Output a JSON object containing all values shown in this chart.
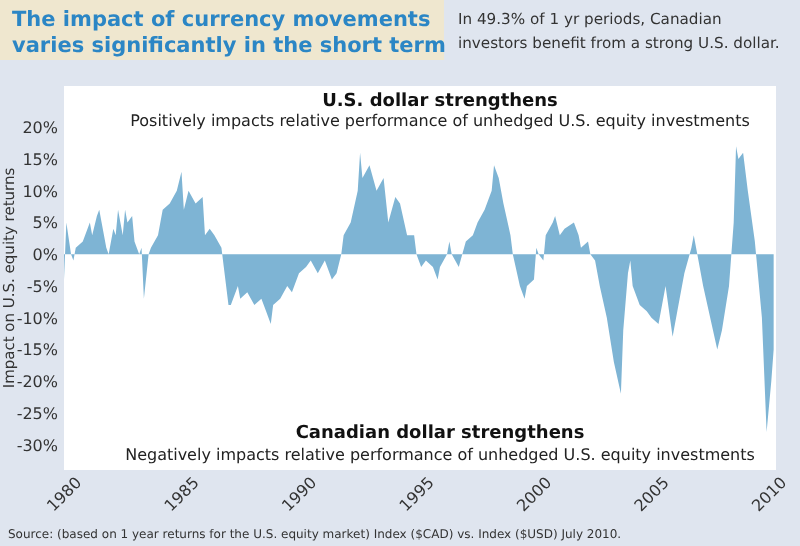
{
  "chart_data": {
    "type": "area",
    "title": "The impact of currency movements varies significantly in the short term",
    "subtitle": "In 49.3% of 1 yr periods, Canadian investors benefit from a strong U.S. dollar.",
    "ylabel": "Impact on U.S. equity returns",
    "annotations": [
      "U.S. dollar strengthens",
      "Positively impacts relative performance of unhedged U.S. equity investments",
      "Canadian dollar strengthens",
      "Negatively impacts relative performance of unhedged U.S. equity investments",
      "Source: (based on 1 year returns for the U.S. equity market) Index ($CAD) vs. Index ($USD) July 2010."
    ],
    "series": [
      {
        "color": "#7eb4d4",
        "x": [
          1980.0,
          1980.1,
          1980.3,
          1980.4,
          1980.5,
          1980.8,
          1981.1,
          1981.2,
          1981.4,
          1981.5,
          1981.6,
          1981.8,
          1981.9,
          1982.1,
          1982.2,
          1982.3,
          1982.5,
          1982.6,
          1982.7,
          1982.9,
          1983.0,
          1983.2,
          1983.3,
          1983.4,
          1983.6,
          1983.7,
          1984.0,
          1984.2,
          1984.5,
          1984.8,
          1985.0,
          1985.1,
          1985.3,
          1985.6,
          1985.9,
          1986.0,
          1986.2,
          1986.4,
          1986.7,
          1986.8,
          1987.0,
          1987.1,
          1987.4,
          1987.5,
          1987.8,
          1988.1,
          1988.4,
          1988.6,
          1988.8,
          1988.9,
          1989.2,
          1989.5,
          1989.7,
          1990.0,
          1990.3,
          1990.5,
          1990.8,
          1991.1,
          1991.4,
          1991.6,
          1991.8,
          1991.9,
          1992.2,
          1992.5,
          1992.6,
          1992.7,
          1993.0,
          1993.3,
          1993.6,
          1993.8,
          1994.1,
          1994.3,
          1994.6,
          1994.9,
          1995.0,
          1995.2,
          1995.4,
          1995.7,
          1995.9,
          1996.0,
          1996.3,
          1996.4,
          1996.5,
          1996.8,
          1997.1,
          1997.4,
          1997.6,
          1997.9,
          1998.2,
          1998.3,
          1998.5,
          1998.7,
          1999.0,
          1999.1,
          1999.4,
          1999.6,
          1999.7,
          2000.0,
          2000.1,
          2000.2,
          2000.4,
          2000.5,
          2000.8,
          2000.9,
          2001.1,
          2001.3,
          2001.7,
          2001.9,
          2002.0,
          2002.3,
          2002.4,
          2002.6,
          2002.8,
          2003.1,
          2003.4,
          2003.7,
          2003.8,
          2004.0,
          2004.1,
          2004.2,
          2004.5,
          2004.8,
          2005.0,
          2005.3,
          2005.6,
          2005.9,
          2006.1,
          2006.4,
          2006.7,
          2006.8,
          2007.0,
          2007.2,
          2007.5,
          2007.8,
          2008.0,
          2008.3,
          2008.5,
          2008.6,
          2008.7,
          2008.9,
          2009.1,
          2009.4,
          2009.7,
          2009.9,
          2010.1,
          2010.2
        ],
        "values": [
          -4,
          5,
          0,
          -1,
          1,
          2,
          5,
          3,
          6,
          7,
          5,
          1,
          0,
          4,
          3,
          7,
          3,
          7,
          5,
          6,
          2,
          0,
          1,
          -7,
          0,
          1,
          3,
          7,
          8,
          10,
          13,
          7,
          10,
          8,
          9,
          3,
          4,
          3,
          1,
          -2,
          -8,
          -8,
          -5,
          -7,
          -6,
          -8,
          -7,
          -9,
          -11,
          -8,
          -7,
          -5,
          -6,
          -3,
          -2,
          -1,
          -3,
          -1,
          -4,
          -3,
          0,
          3,
          5,
          10,
          16,
          12,
          14,
          10,
          12,
          5,
          9,
          8,
          3,
          3,
          0,
          -2,
          -1,
          -2,
          -4,
          -2,
          0,
          2,
          0,
          -2,
          2,
          3,
          5,
          7,
          10,
          14,
          12,
          8,
          3,
          0,
          -5,
          -7,
          -5,
          -4,
          1,
          0,
          -1,
          3,
          5,
          6,
          3,
          4,
          5,
          3,
          1,
          2,
          0,
          -1,
          -5,
          -10,
          -17,
          -22,
          -12,
          -3,
          -1,
          -5,
          -8,
          -9,
          -10,
          -11,
          -5,
          -13,
          -9,
          -3,
          1,
          3,
          -1,
          -5,
          -10,
          -15,
          -12,
          -5,
          5,
          17,
          15,
          16,
          10,
          2,
          -10,
          -28,
          -20,
          -15
        ]
      }
    ],
    "xlim": [
      1980,
      2010.3
    ],
    "xticks": [
      1980,
      1985,
      1990,
      1995,
      2000,
      2005,
      2010
    ],
    "ylim": [
      -34,
      26.5
    ],
    "yticks": [
      {
        "value": 20,
        "label": "20%"
      },
      {
        "value": 15,
        "label": "15%"
      },
      {
        "value": 10,
        "label": "10%"
      },
      {
        "value": 5,
        "label": "5%"
      },
      {
        "value": 0,
        "label": "0%"
      },
      {
        "value": -5,
        "label": "-5%"
      },
      {
        "value": -10,
        "label": "-10%"
      },
      {
        "value": -15,
        "label": "-15%"
      },
      {
        "value": -20,
        "label": "-20%"
      },
      {
        "value": -25,
        "label": "-25%"
      },
      {
        "value": -30,
        "label": "-30%"
      }
    ]
  }
}
